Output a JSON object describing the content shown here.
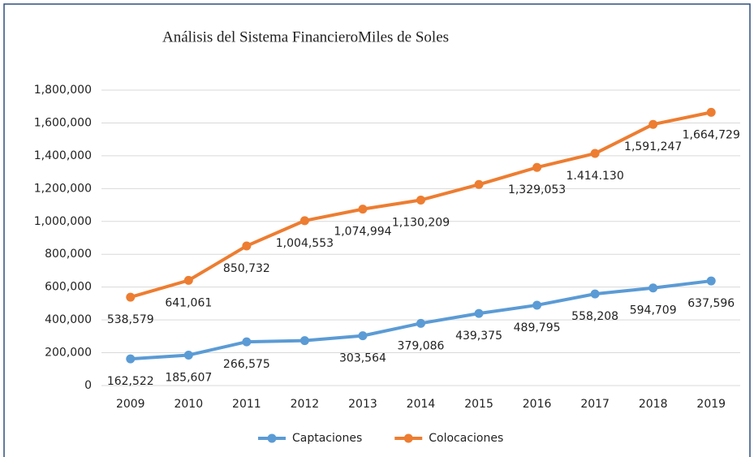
{
  "chart_data": {
    "type": "line",
    "title": "Análisis del Sistema FinancieroMiles de Soles",
    "categories": [
      "2009",
      "2010",
      "2011",
      "2012",
      "2013",
      "2014",
      "2015",
      "2016",
      "2017",
      "2018",
      "2019"
    ],
    "series": [
      {
        "name": "Captaciones",
        "color": "#5b9bd5",
        "values": [
          162522,
          185607,
          266575,
          274000,
          303564,
          379086,
          439375,
          489795,
          558208,
          594709,
          637596
        ],
        "value_labels": [
          "162,522",
          "185,607",
          "266,575",
          null,
          "303,564",
          "379,086",
          "439,375",
          "489,795",
          "558,208",
          "594,709",
          "637,596"
        ]
      },
      {
        "name": "Colocaciones",
        "color": "#ed7d31",
        "values": [
          538579,
          641061,
          850732,
          1004553,
          1074994,
          1130209,
          1225000,
          1329053,
          1414130,
          1591247,
          1664729
        ],
        "value_labels": [
          "538,579",
          "641,061",
          "850,732",
          "1,004,553",
          "1,074,994",
          "1,130,209",
          null,
          "1,329,053",
          "1.414.130",
          "1,591,247",
          "1,664,729"
        ]
      }
    ],
    "ylim": [
      0,
      1800000
    ],
    "yticks": [
      0,
      {
        "value": 200000,
        "label": "200,000"
      },
      {
        "value": 400000,
        "label": "400,000"
      },
      {
        "value": 600000,
        "label": "600,000"
      },
      {
        "value": 800000,
        "label": "800,000"
      },
      {
        "value": 1000000,
        "label": "1,000,000"
      },
      {
        "value": 1200000,
        "label": "1,200,000"
      },
      {
        "value": 1400000,
        "label": "1,400,000"
      },
      {
        "value": 1600000,
        "label": "1,600,000"
      },
      {
        "value": 1800000,
        "label": "1,800,000"
      }
    ],
    "grid": true,
    "legend": "bottom"
  }
}
